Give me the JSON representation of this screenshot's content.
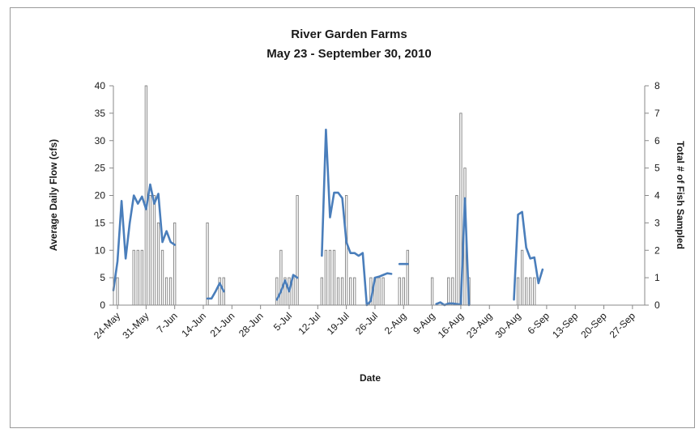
{
  "chart_data": {
    "type": "line+bar",
    "title": "River Garden Farms",
    "subtitle": "May 23 - September 30, 2010",
    "xlabel": "Date",
    "ylabel_left": "Average Daily Flow (cfs)",
    "ylabel_right": "Total # of Fish Sampled",
    "x_range": [
      "2010-05-23",
      "2010-09-30"
    ],
    "ylim_left": [
      0,
      40
    ],
    "ylim_right": [
      0,
      8
    ],
    "yticks_left": [
      "0",
      "5",
      "10",
      "15",
      "20",
      "25",
      "30",
      "35",
      "40"
    ],
    "yticks_right": [
      "0",
      "1",
      "2",
      "3",
      "4",
      "5",
      "6",
      "7",
      "8"
    ],
    "xtick_dates": [
      "2010-05-24",
      "2010-05-31",
      "2010-06-07",
      "2010-06-14",
      "2010-06-21",
      "2010-06-28",
      "2010-07-05",
      "2010-07-12",
      "2010-07-19",
      "2010-07-26",
      "2010-08-02",
      "2010-08-09",
      "2010-08-16",
      "2010-08-23",
      "2010-08-30",
      "2010-09-06",
      "2010-09-13",
      "2010-09-20",
      "2010-09-27"
    ],
    "xtick_labels": [
      "24-May",
      "31-May",
      "7-Jun",
      "14-Jun",
      "21-Jun",
      "28-Jun",
      "5-Jul",
      "12-Jul",
      "19-Jul",
      "26-Jul",
      "2-Aug",
      "9-Aug",
      "16-Aug",
      "23-Aug",
      "30-Aug",
      "6-Sep",
      "13-Sep",
      "20-Sep",
      "27-Sep"
    ],
    "line_color": "#4a7ebb",
    "bar_color": "#7f7f7f",
    "grid": false,
    "legend": "none",
    "series": [
      {
        "kind": "bar",
        "axis": "right",
        "dates": [
          "2010-05-24",
          "2010-05-28",
          "2010-05-29",
          "2010-05-30",
          "2010-05-31",
          "2010-06-01",
          "2010-06-02",
          "2010-06-03",
          "2010-06-04",
          "2010-06-05",
          "2010-06-06",
          "2010-06-07",
          "2010-06-15",
          "2010-06-18",
          "2010-06-19",
          "2010-07-02",
          "2010-07-03",
          "2010-07-04",
          "2010-07-05",
          "2010-07-06",
          "2010-07-07",
          "2010-07-13",
          "2010-07-14",
          "2010-07-15",
          "2010-07-16",
          "2010-07-17",
          "2010-07-18",
          "2010-07-19",
          "2010-07-20",
          "2010-07-21",
          "2010-07-25",
          "2010-07-26",
          "2010-07-27",
          "2010-07-28",
          "2010-08-01",
          "2010-08-02",
          "2010-08-03",
          "2010-08-09",
          "2010-08-13",
          "2010-08-14",
          "2010-08-15",
          "2010-08-16",
          "2010-08-17",
          "2010-08-18",
          "2010-08-30",
          "2010-08-31",
          "2010-09-01",
          "2010-09-02",
          "2010-09-03"
        ],
        "values": [
          1,
          2,
          2,
          2,
          8,
          4,
          4,
          3,
          2,
          1,
          1,
          3,
          3,
          1,
          1,
          1,
          2,
          1,
          1,
          1,
          4,
          1,
          2,
          2,
          2,
          1,
          1,
          4,
          1,
          1,
          1,
          1,
          1,
          1,
          1,
          1,
          2,
          1,
          1,
          1,
          4,
          7,
          5,
          1,
          1,
          2,
          1,
          1,
          1
        ]
      },
      {
        "kind": "line",
        "axis": "left",
        "segments": [
          {
            "dates": [
              "2010-05-23",
              "2010-05-24",
              "2010-05-25",
              "2010-05-26",
              "2010-05-27",
              "2010-05-28",
              "2010-05-29",
              "2010-05-30",
              "2010-05-31",
              "2010-06-01",
              "2010-06-02",
              "2010-06-03",
              "2010-06-04",
              "2010-06-05",
              "2010-06-06",
              "2010-06-07"
            ],
            "values": [
              2.7,
              8,
              19,
              8.5,
              15,
              20,
              18.5,
              19.8,
              17.5,
              22,
              18.5,
              20.3,
              11.5,
              13.5,
              11.5,
              11
            ]
          },
          {
            "dates": [
              "2010-06-15",
              "2010-06-16",
              "2010-06-17",
              "2010-06-18",
              "2010-06-19"
            ],
            "values": [
              1.2,
              1.2,
              2.5,
              4,
              2.5
            ]
          },
          {
            "dates": [
              "2010-07-02",
              "2010-07-03",
              "2010-07-04",
              "2010-07-05",
              "2010-07-06",
              "2010-07-07"
            ],
            "values": [
              1,
              2.5,
              4.5,
              2.5,
              5.5,
              5
            ]
          },
          {
            "dates": [
              "2010-07-13",
              "2010-07-14",
              "2010-07-15",
              "2010-07-16",
              "2010-07-17",
              "2010-07-18",
              "2010-07-19",
              "2010-07-20",
              "2010-07-21",
              "2010-07-22",
              "2010-07-23",
              "2010-07-24",
              "2010-07-25",
              "2010-07-26",
              "2010-07-27",
              "2010-07-28",
              "2010-07-29",
              "2010-07-30"
            ],
            "values": [
              9,
              32,
              16,
              20.5,
              20.5,
              19.5,
              11.5,
              9.5,
              9.5,
              9,
              9.5,
              0,
              0.8,
              5,
              5.2,
              5.5,
              5.8,
              5.7
            ]
          },
          {
            "dates": [
              "2010-08-01",
              "2010-08-02",
              "2010-08-03"
            ],
            "values": [
              7.5,
              7.5,
              7.5
            ]
          },
          {
            "dates": [
              "2010-08-10",
              "2010-08-11",
              "2010-08-12",
              "2010-08-13",
              "2010-08-14",
              "2010-08-15",
              "2010-08-16",
              "2010-08-17",
              "2010-08-18"
            ],
            "values": [
              0.2,
              0.5,
              0,
              0.3,
              0.3,
              0.2,
              0.1,
              19.5,
              0
            ]
          },
          {
            "dates": [
              "2010-08-29",
              "2010-08-30",
              "2010-08-31",
              "2010-09-01",
              "2010-09-02",
              "2010-09-03",
              "2010-09-04",
              "2010-09-05"
            ],
            "values": [
              1,
              16.5,
              17,
              10.5,
              8.5,
              8.7,
              4,
              6.5
            ]
          }
        ]
      }
    ]
  }
}
